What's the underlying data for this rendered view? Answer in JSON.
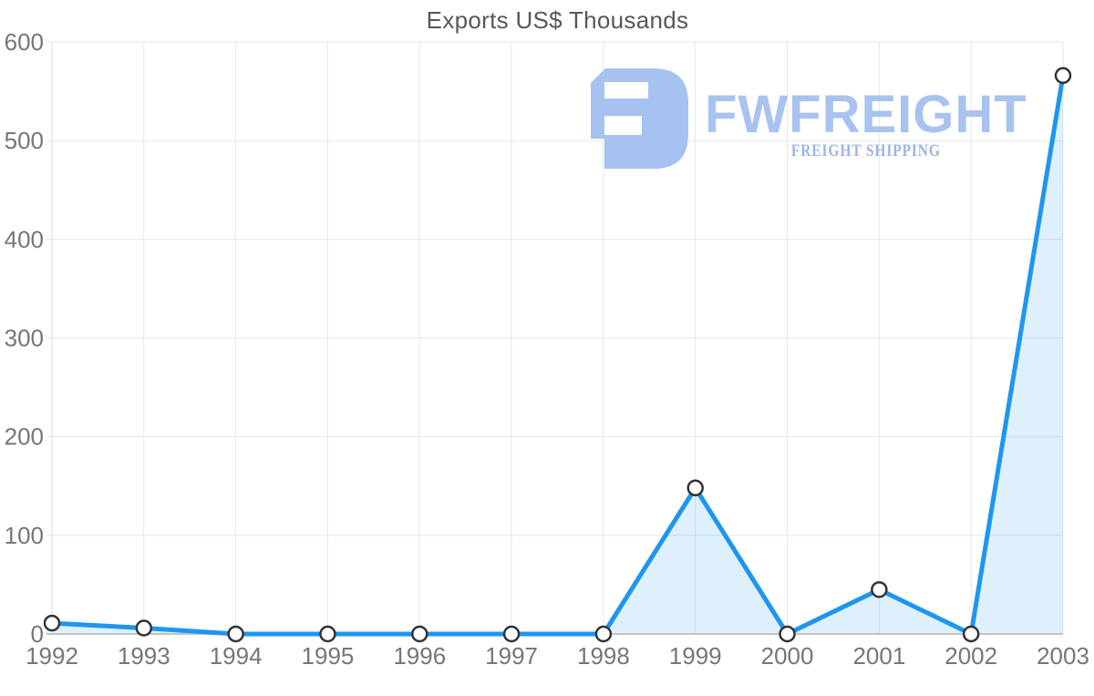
{
  "page": {
    "background": "#FFFFFF"
  },
  "chart_data": {
    "type": "area",
    "title": "Exports US$ Thousands",
    "xlabel": "",
    "ylabel": "",
    "x": [
      1992,
      1993,
      1994,
      1995,
      1996,
      1997,
      1998,
      1999,
      2000,
      2001,
      2002,
      2003
    ],
    "series": [
      {
        "name": "Exports US$ Thousands",
        "values": [
          11,
          6,
          0,
          0,
          0,
          0,
          0,
          148,
          0,
          45,
          0,
          566
        ]
      }
    ],
    "ylim": [
      0,
      600
    ],
    "ytick_step": 100,
    "yticks": [
      0,
      100,
      200,
      300,
      400,
      500,
      600
    ],
    "grid": true,
    "legend_position": "none",
    "colors": {
      "line": "#1E96F0",
      "fill_opacity": 0.14,
      "grid": "#E7E7E7",
      "axis_left": "#DCDCDC",
      "axis_bottom": "#C2C2C2",
      "tick_label": "#757679",
      "title": "#57585A",
      "marker_fill": "#FFFFFF",
      "marker_stroke": "#333333"
    }
  },
  "logo": {
    "brand": "FWFREIGHT",
    "tagline": "FREIGHT SHIPPING",
    "color_icon": "#A6C2F0",
    "color_brand": "#A8C3EF",
    "color_tagline": "#9CB4E3"
  }
}
